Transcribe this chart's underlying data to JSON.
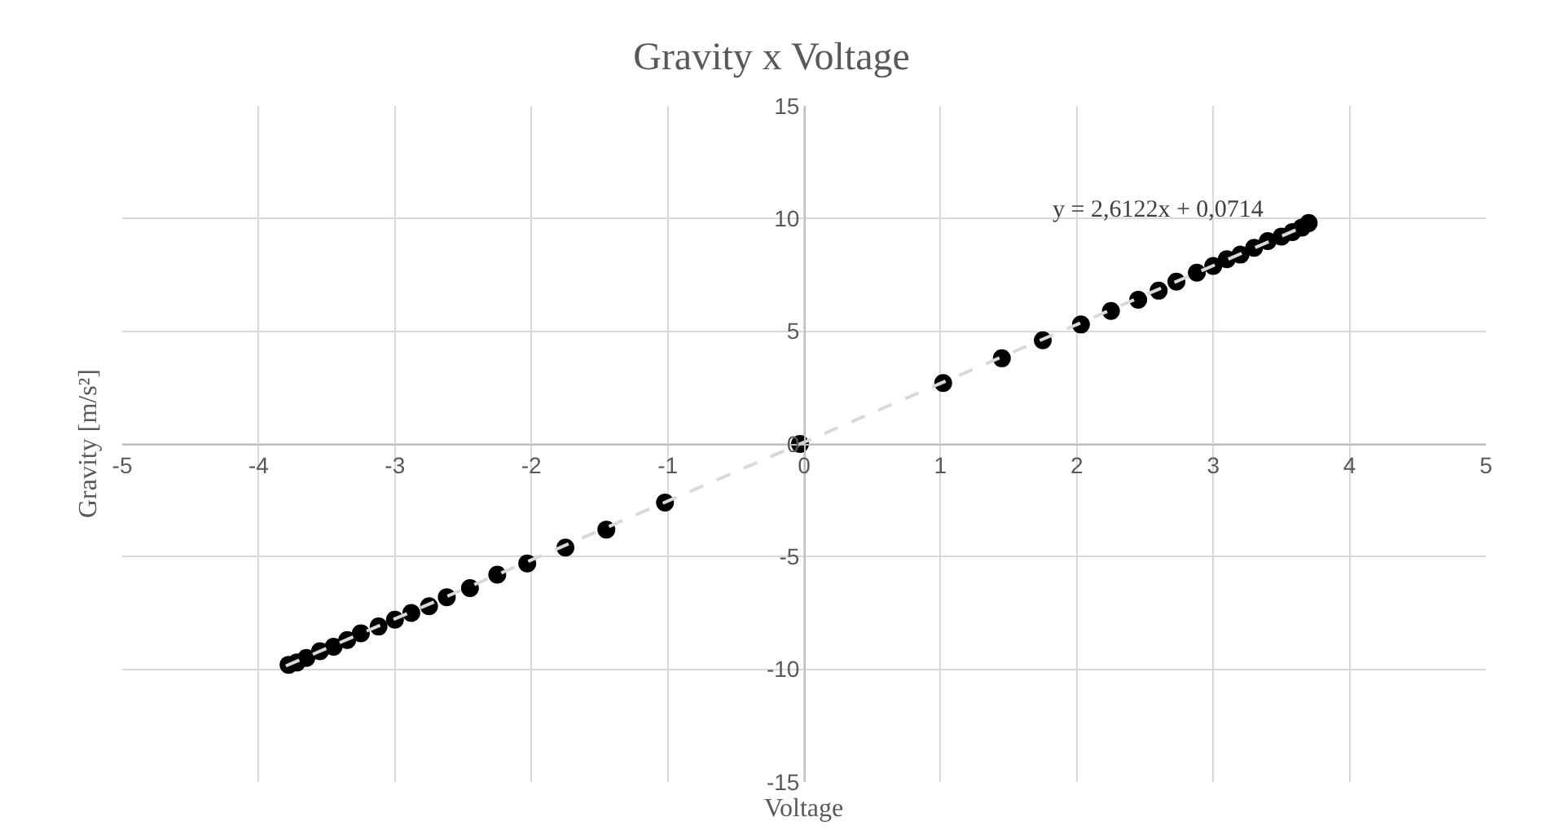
{
  "chart_data": {
    "type": "scatter",
    "title": "Gravity x Voltage",
    "xlabel": "Voltage",
    "ylabel": "Gravity [m/s²]",
    "xlim": [
      -5,
      5
    ],
    "xticks": [
      -5,
      -4,
      -3,
      -2,
      -1,
      0,
      1,
      2,
      3,
      4,
      5
    ],
    "ylim": [
      -15,
      15
    ],
    "yticks": [
      -15,
      -10,
      -5,
      0,
      5,
      10,
      15
    ],
    "grid": true,
    "marker": "circle",
    "annotations": [
      "y = 2,6122x + 0,0714"
    ],
    "series": [
      {
        "color": "#000000",
        "x": [
          -3.78,
          -3.72,
          -3.65,
          -3.55,
          -3.45,
          -3.35,
          -3.25,
          -3.12,
          -3.0,
          -2.88,
          -2.75,
          -2.62,
          -2.45,
          -2.25,
          -2.03,
          -1.75,
          -1.45,
          -1.02,
          -0.03,
          1.02,
          1.45,
          1.75,
          2.03,
          2.25,
          2.45,
          2.6,
          2.73,
          2.88,
          3.0,
          3.1,
          3.2,
          3.3,
          3.4,
          3.5,
          3.58,
          3.65,
          3.7
        ],
        "values": [
          -9.8,
          -9.7,
          -9.5,
          -9.2,
          -9.0,
          -8.7,
          -8.4,
          -8.1,
          -7.8,
          -7.5,
          -7.2,
          -6.8,
          -6.4,
          -5.8,
          -5.3,
          -4.6,
          -3.8,
          -2.6,
          0.0,
          2.7,
          3.8,
          4.6,
          5.3,
          5.9,
          6.4,
          6.8,
          7.2,
          7.6,
          7.9,
          8.2,
          8.4,
          8.7,
          9.0,
          9.2,
          9.4,
          9.6,
          9.8
        ]
      },
      {
        "type": "line",
        "color": "#d9d9d9",
        "line_style": "dashed",
        "marker": "none",
        "x": [
          -3.8,
          3.7
        ],
        "values": [
          -9.85,
          9.74
        ]
      }
    ]
  }
}
